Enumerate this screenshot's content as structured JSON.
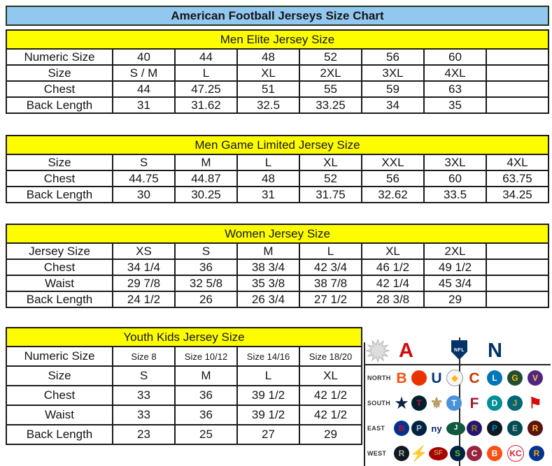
{
  "title": "American Football Jerseys Size Chart",
  "colors": {
    "title_bg": "#92c7ef",
    "section_header_bg": "#fdfd00",
    "border": "#1c1c1c",
    "afc_red": "#d50a0a",
    "nfc_blue": "#013369"
  },
  "tables": [
    {
      "id": "men-elite",
      "header": "Men Elite Jersey Size",
      "rows": [
        {
          "label": "Numeric Size",
          "values": [
            "40",
            "44",
            "48",
            "52",
            "56",
            "60",
            ""
          ]
        },
        {
          "label": "Size",
          "values": [
            "S / M",
            "L",
            "XL",
            "2XL",
            "3XL",
            "4XL",
            ""
          ]
        },
        {
          "label": "Chest",
          "values": [
            "44",
            "47.25",
            "51",
            "55",
            "59",
            "63",
            ""
          ]
        },
        {
          "label": "Back Length",
          "values": [
            "31",
            "31.62",
            "32.5",
            "33.25",
            "34",
            "35",
            ""
          ]
        }
      ]
    },
    {
      "id": "men-game-limited",
      "header": "Men Game Limited Jersey Size",
      "rows": [
        {
          "label": "Size",
          "values": [
            "S",
            "M",
            "L",
            "XL",
            "XXL",
            "3XL",
            "4XL"
          ]
        },
        {
          "label": "Chest",
          "values": [
            "44.75",
            "44.87",
            "48",
            "52",
            "56",
            "60",
            "63.75"
          ]
        },
        {
          "label": "Back Length",
          "values": [
            "30",
            "30.25",
            "31",
            "31.75",
            "32.62",
            "33.5",
            "34.25"
          ]
        }
      ]
    },
    {
      "id": "women",
      "header": "Women Jersey Size",
      "rows": [
        {
          "label": "Jersey Size",
          "values": [
            "XS",
            "S",
            "M",
            "L",
            "XL",
            "2XL",
            ""
          ]
        },
        {
          "label": "Chest",
          "values": [
            "34 1/4",
            "36",
            "38 3/4",
            "42 3/4",
            "46 1/2",
            "49 1/2",
            ""
          ]
        },
        {
          "label": "Waist",
          "values": [
            "29 7/8",
            "32 5/8",
            "35 3/8",
            "38 7/8",
            "42 1/4",
            "45 3/4",
            ""
          ]
        },
        {
          "label": "Back Length",
          "values": [
            "24 1/2",
            "26",
            "26 3/4",
            "27 1/2",
            "28 3/8",
            "29",
            ""
          ]
        }
      ]
    },
    {
      "id": "youth-kids",
      "header": "Youth Kids Jersey Size",
      "small_first_row": true,
      "rows": [
        {
          "label": "Numeric Size",
          "values": [
            "Size 8",
            "Size 10/12",
            "Size 14/16",
            "Size 18/20"
          ]
        },
        {
          "label": "Size",
          "values": [
            "S",
            "M",
            "L",
            "XL"
          ]
        },
        {
          "label": "Chest",
          "values": [
            "33",
            "36",
            "39 1/2",
            "42 1/2"
          ]
        },
        {
          "label": "Waist",
          "values": [
            "33",
            "36",
            "39 1/2",
            "42 1/2"
          ]
        },
        {
          "label": "Back Length",
          "values": [
            "23",
            "25",
            "27",
            "29"
          ]
        }
      ]
    }
  ],
  "logo_panel": {
    "afc_letter": "A",
    "nfc_letter": "N",
    "shield_text": "NFL",
    "rows": [
      {
        "label": "NORTH",
        "afc": [
          {
            "team": "bengals",
            "shape": "glyph",
            "glyph": "B",
            "fg": "#fb4f14"
          },
          {
            "team": "browns",
            "shape": "circle",
            "glyph": "",
            "bg": "#eb3300",
            "fg": "#ffffff"
          },
          {
            "team": "colts",
            "shape": "glyph",
            "glyph": "U",
            "fg": "#013a81"
          },
          {
            "team": "steelers",
            "shape": "circle",
            "glyph": "◆",
            "bg": "#f6f6f6",
            "fg": "#ffb612",
            "border": "#9a9a9a"
          }
        ],
        "nfc": [
          {
            "team": "bears",
            "shape": "glyph",
            "glyph": "C",
            "fg": "#c83803"
          },
          {
            "team": "lions",
            "shape": "circle",
            "glyph": "L",
            "bg": "#0076b6",
            "fg": "#ffffff"
          },
          {
            "team": "packers",
            "shape": "circle",
            "glyph": "G",
            "bg": "#204e32",
            "fg": "#ffb612"
          },
          {
            "team": "vikings",
            "shape": "circle",
            "glyph": "V",
            "bg": "#4f2683",
            "fg": "#ffc62f"
          }
        ]
      },
      {
        "label": "SOUTH",
        "afc": [
          {
            "team": "cowboys",
            "shape": "glyph",
            "glyph": "★",
            "fg": "#0d2240"
          },
          {
            "team": "texans",
            "shape": "circle",
            "glyph": "T",
            "bg": "#03202f",
            "fg": "#c41230"
          },
          {
            "team": "saints",
            "shape": "glyph",
            "glyph": "⚜",
            "fg": "#b79a5d"
          },
          {
            "team": "titans",
            "shape": "circle",
            "glyph": "T",
            "bg": "#4b92db",
            "fg": "#ffffff"
          }
        ],
        "nfc": [
          {
            "team": "falcons",
            "shape": "glyph",
            "glyph": "F",
            "fg": "#a71930"
          },
          {
            "team": "dolphins",
            "shape": "circle",
            "glyph": "D",
            "bg": "#008e97",
            "fg": "#ffffff"
          },
          {
            "team": "jaguars",
            "shape": "circle",
            "glyph": "J",
            "bg": "#006778",
            "fg": "#d7a22a"
          },
          {
            "team": "buccaneers",
            "shape": "glyph",
            "glyph": "⚑",
            "fg": "#d50a0a"
          }
        ]
      },
      {
        "label": "EAST",
        "afc": [
          {
            "team": "bills",
            "shape": "circle",
            "glyph": "B",
            "bg": "#00338d",
            "fg": "#c60c30"
          },
          {
            "team": "patriots",
            "shape": "circle",
            "glyph": "P",
            "bg": "#002244",
            "fg": "#b0b7bc"
          },
          {
            "team": "giants",
            "shape": "glyph",
            "glyph": "ny",
            "fg": "#0b2265"
          },
          {
            "team": "jets",
            "shape": "oval",
            "glyph": "J",
            "bg": "#125740",
            "fg": "#ffffff"
          }
        ],
        "nfc": [
          {
            "team": "ravens",
            "shape": "circle",
            "glyph": "R",
            "bg": "#241773",
            "fg": "#9e7c0c"
          },
          {
            "team": "panthers",
            "shape": "circle",
            "glyph": "P",
            "bg": "#101820",
            "fg": "#0085ca"
          },
          {
            "team": "eagles",
            "shape": "circle",
            "glyph": "E",
            "bg": "#004c54",
            "fg": "#a5acaf"
          },
          {
            "team": "redskins",
            "shape": "circle",
            "glyph": "R",
            "bg": "#5a1414",
            "fg": "#ffb612"
          }
        ]
      },
      {
        "label": "WEST",
        "afc": [
          {
            "team": "raiders",
            "shape": "circle",
            "glyph": "R",
            "bg": "#101820",
            "fg": "#a5acaf"
          },
          {
            "team": "chargers",
            "shape": "glyph",
            "glyph": "⚡",
            "fg": "#ffc20e"
          },
          {
            "team": "49ers",
            "shape": "oval",
            "glyph": "SF",
            "bg": "#aa0000",
            "fg": "#b3995d"
          },
          {
            "team": "seahawks",
            "shape": "circle",
            "glyph": "S",
            "bg": "#002244",
            "fg": "#69be28"
          }
        ],
        "nfc": [
          {
            "team": "cardinals",
            "shape": "circle",
            "glyph": "C",
            "bg": "#97233f",
            "fg": "#ffffff"
          },
          {
            "team": "broncos",
            "shape": "circle",
            "glyph": "B",
            "bg": "#fb4f14",
            "fg": "#ffffff"
          },
          {
            "team": "chiefs",
            "shape": "circle",
            "glyph": "KC",
            "bg": "#ffffff",
            "fg": "#e31837",
            "border": "#e31837"
          },
          {
            "team": "rams",
            "shape": "circle",
            "glyph": "R",
            "bg": "#003594",
            "fg": "#ffa300"
          }
        ]
      }
    ]
  }
}
